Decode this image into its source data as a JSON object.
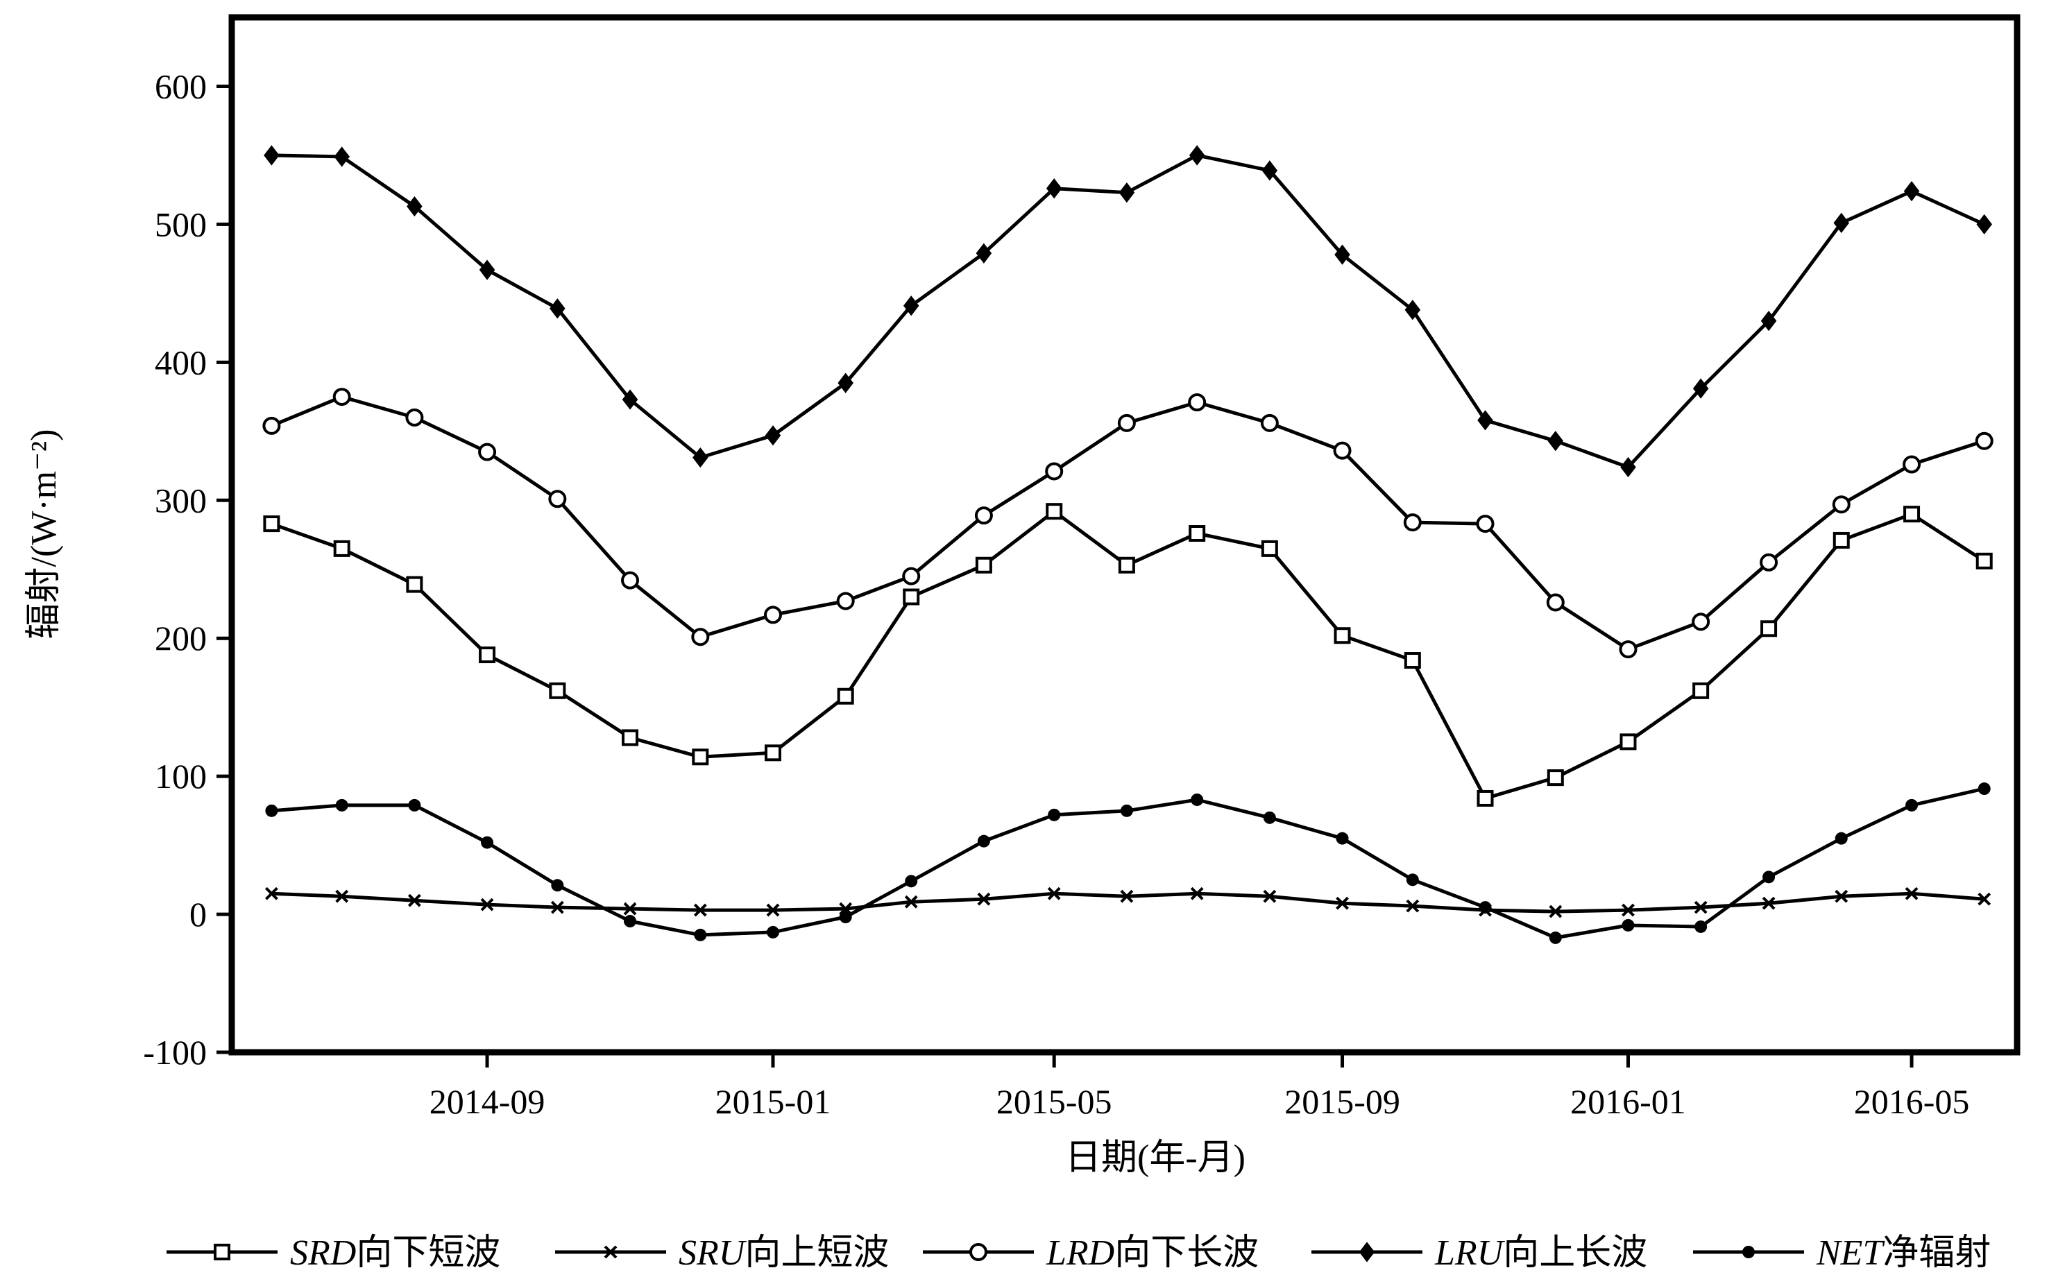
{
  "chart_data": {
    "type": "line",
    "title": "",
    "xlabel": "日期(年-月)",
    "ylabel": "辐射/(W·m⁻²)",
    "ylim": [
      -100,
      650
    ],
    "yticks": [
      -100,
      0,
      100,
      200,
      300,
      400,
      500,
      600
    ],
    "x_range": [
      "2014-05-15",
      "2016-06-15"
    ],
    "xticks": [
      {
        "date": "2014-09-01",
        "label": "2014-09"
      },
      {
        "date": "2015-01-01",
        "label": "2015-01"
      },
      {
        "date": "2015-05-01",
        "label": "2015-05"
      },
      {
        "date": "2015-09-01",
        "label": "2015-09"
      },
      {
        "date": "2016-01-01",
        "label": "2016-01"
      },
      {
        "date": "2016-05-01",
        "label": "2016-05"
      }
    ],
    "grid": false,
    "legend_position": "bottom",
    "x": [
      "2014-06-01",
      "2014-07-01",
      "2014-08-01",
      "2014-09-01",
      "2014-10-01",
      "2014-11-01",
      "2014-12-01",
      "2015-01-01",
      "2015-02-01",
      "2015-03-01",
      "2015-04-01",
      "2015-05-01",
      "2015-06-01",
      "2015-07-01",
      "2015-08-01",
      "2015-09-01",
      "2015-10-01",
      "2015-11-01",
      "2015-12-01",
      "2016-01-01",
      "2016-02-01",
      "2016-03-01",
      "2016-04-01",
      "2016-05-01",
      "2016-06-01"
    ],
    "series": [
      {
        "code": "SRD",
        "name": "向下短波",
        "marker": "square",
        "values": [
          283,
          265,
          239,
          188,
          162,
          128,
          114,
          117,
          158,
          230,
          253,
          292,
          253,
          276,
          265,
          202,
          184,
          84,
          99,
          125,
          162,
          207,
          271,
          290,
          256
        ]
      },
      {
        "code": "SRU",
        "name": "向上短波",
        "marker": "x",
        "values": [
          15,
          13,
          10,
          7,
          5,
          4,
          3,
          3,
          4,
          9,
          11,
          15,
          13,
          15,
          13,
          8,
          6,
          3,
          2,
          3,
          5,
          8,
          13,
          15,
          11
        ]
      },
      {
        "code": "LRD",
        "name": "向下长波",
        "marker": "circle",
        "values": [
          354,
          375,
          360,
          335,
          301,
          242,
          201,
          217,
          227,
          245,
          289,
          321,
          356,
          371,
          356,
          336,
          284,
          283,
          226,
          192,
          212,
          255,
          297,
          326,
          343
        ]
      },
      {
        "code": "LRU",
        "name": "向上长波",
        "marker": "diamond",
        "values": [
          550,
          549,
          513,
          467,
          439,
          373,
          331,
          347,
          385,
          441,
          479,
          526,
          523,
          550,
          539,
          478,
          438,
          358,
          343,
          324,
          381,
          430,
          501,
          524,
          500
        ]
      },
      {
        "code": "NET",
        "name": "净辐射",
        "marker": "dot",
        "values": [
          75,
          79,
          79,
          52,
          21,
          -5,
          -15,
          -13,
          -2,
          24,
          53,
          72,
          75,
          83,
          70,
          55,
          25,
          5,
          -17,
          -8,
          -9,
          27,
          55,
          79,
          91
        ]
      }
    ]
  }
}
